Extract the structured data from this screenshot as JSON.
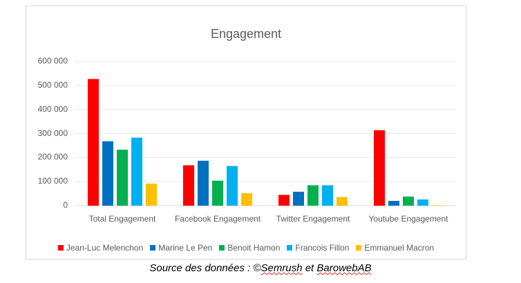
{
  "chart_data": {
    "type": "bar",
    "title": "Engagement",
    "categories": [
      "Total Engagement",
      "Facebook Engagement",
      "Twitter Engagement",
      "Youtube Engagement"
    ],
    "ylim": [
      0,
      600000
    ],
    "yticks": [
      0,
      100000,
      200000,
      300000,
      400000,
      500000,
      600000
    ],
    "ytick_labels": [
      "0",
      "100 000",
      "200 000",
      "300 000",
      "400 000",
      "500 000",
      "600 000"
    ],
    "grid": true,
    "legend": "bottom",
    "series": [
      {
        "name": "Jean-Luc Melenchon",
        "color": "#ff0000",
        "values": [
          527000,
          168000,
          45000,
          314000
        ]
      },
      {
        "name": "Marine Le Pen",
        "color": "#0070c0",
        "values": [
          268000,
          187000,
          58000,
          20000
        ]
      },
      {
        "name": "Benoit Hamon",
        "color": "#00b050",
        "values": [
          233000,
          104000,
          85000,
          38000
        ]
      },
      {
        "name": "Francois Fillon",
        "color": "#00b0f0",
        "values": [
          283000,
          165000,
          85000,
          26000
        ]
      },
      {
        "name": "Emmanuel Macron",
        "color": "#ffc000",
        "values": [
          92000,
          52000,
          36000,
          2000
        ]
      }
    ]
  },
  "source": {
    "prefix": "Source des données : ©",
    "brand1": "Semrush",
    "middle": " et ",
    "brand2": "BarowebAB"
  }
}
